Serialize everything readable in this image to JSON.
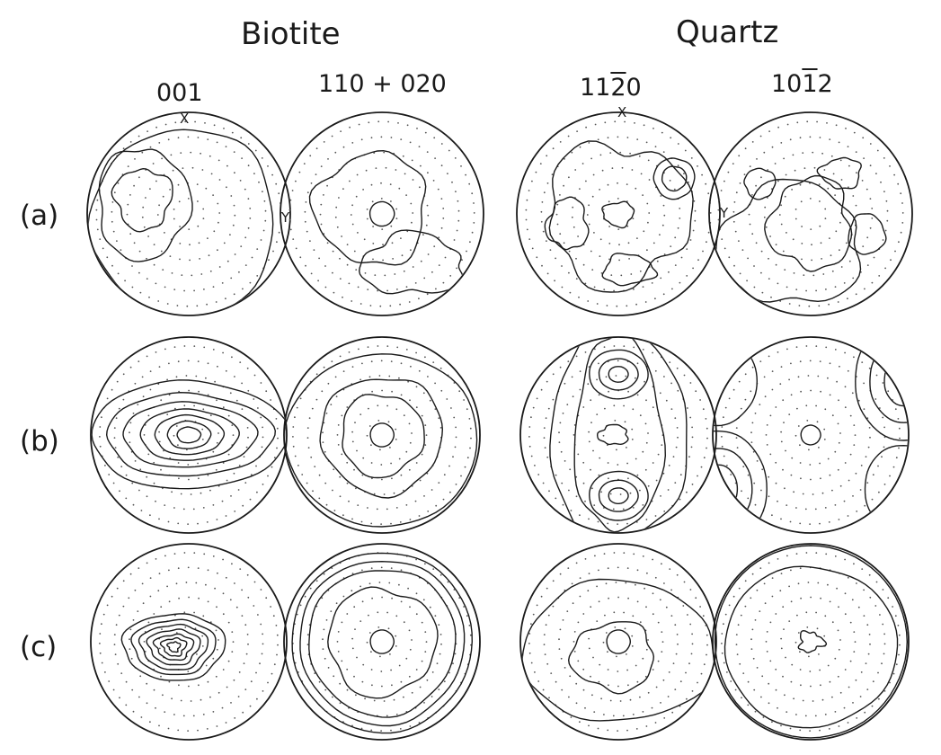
{
  "minerals": [
    "Biotite",
    "Quartz"
  ],
  "planes": {
    "p001": "001",
    "p110": "110 + 020",
    "p1120": {
      "pre": "11",
      "bar": "2",
      "post": "0"
    },
    "p1012": {
      "pre": "10",
      "bar": "1",
      "post": "2"
    }
  },
  "rows": [
    "(a)",
    "(b)",
    "(c)"
  ],
  "axis": {
    "x": "X",
    "y": "Y"
  },
  "colors": {
    "ink": "#1a1a1a",
    "dots": "#555555",
    "background": "#ffffff"
  }
}
